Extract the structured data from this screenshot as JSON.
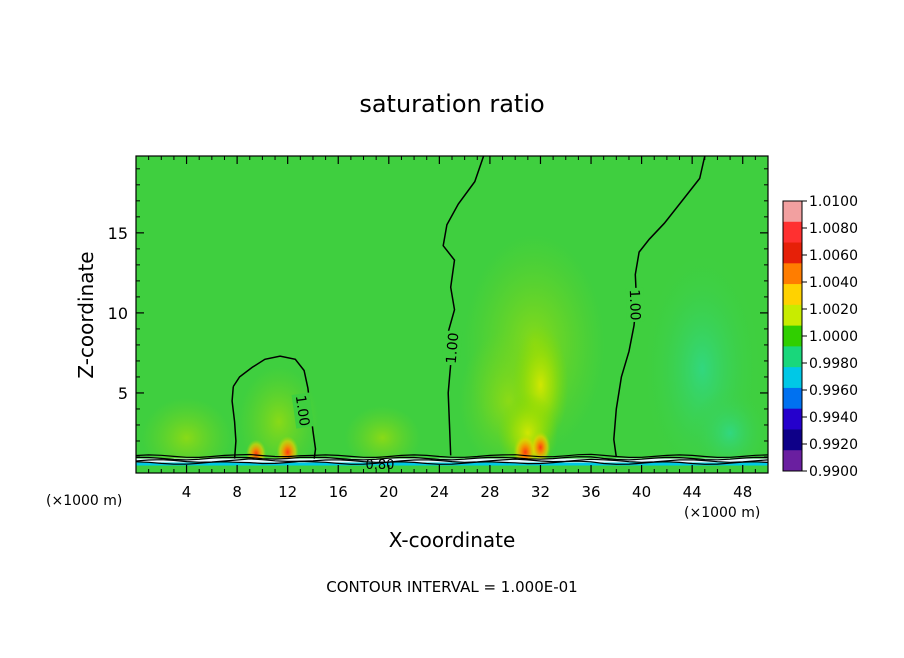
{
  "chart_data": {
    "type": "heatmap",
    "title": "saturation ratio",
    "xlabel": "X-coordinate",
    "ylabel": "Z-coordinate",
    "x_unit_left": "(×1000 m)",
    "x_unit_right": "(×1000 m)",
    "xlim": [
      0,
      50
    ],
    "ylim": [
      0,
      19.8
    ],
    "x_ticks": [
      4,
      8,
      12,
      16,
      20,
      24,
      28,
      32,
      36,
      40,
      44,
      48
    ],
    "y_ticks": [
      5,
      10,
      15
    ],
    "footer": "CONTOUR INTERVAL = 1.000E-01",
    "colorbar": {
      "levels": [
        "1.0100",
        "1.0080",
        "1.0060",
        "1.0040",
        "1.0020",
        "1.0000",
        "0.9980",
        "0.9960",
        "0.9940",
        "0.9920",
        "0.9900"
      ],
      "colors": [
        "#f2a0a0",
        "#ff3030",
        "#e62008",
        "#ff7d00",
        "#ffd200",
        "#c8ec00",
        "#30cf00",
        "#19d77b",
        "#00c8e6",
        "#0071f0",
        "#2500cc",
        "#0e0088",
        "#6a1fa0"
      ]
    },
    "background_value_color": "#3fcf3f",
    "contours": [
      {
        "label": "1.00",
        "points": [
          [
            7.7,
            5.4
          ],
          [
            8.2,
            6.0
          ],
          [
            9.2,
            6.6
          ],
          [
            10.2,
            7.1
          ],
          [
            11.4,
            7.3
          ],
          [
            12.6,
            7.1
          ],
          [
            13.3,
            6.4
          ],
          [
            13.6,
            5.3
          ],
          [
            13.8,
            4.0
          ],
          [
            14.0,
            2.6
          ],
          [
            14.2,
            1.5
          ],
          [
            14.1,
            0.9
          ]
        ]
      },
      {
        "label": "1.00",
        "points": [
          [
            7.8,
            0.9
          ],
          [
            7.9,
            2.0
          ],
          [
            7.8,
            3.2
          ],
          [
            7.6,
            4.5
          ],
          [
            7.7,
            5.4
          ]
        ]
      },
      {
        "label": "1.00",
        "points": [
          [
            27.5,
            19.8
          ],
          [
            26.8,
            18.2
          ],
          [
            25.5,
            16.8
          ],
          [
            24.6,
            15.5
          ],
          [
            24.3,
            14.2
          ],
          [
            25.2,
            13.3
          ],
          [
            24.9,
            11.6
          ],
          [
            25.2,
            10.2
          ],
          [
            24.7,
            8.8
          ],
          [
            24.9,
            6.8
          ],
          [
            24.7,
            5.0
          ],
          [
            24.8,
            3.0
          ],
          [
            24.9,
            1.1
          ]
        ]
      },
      {
        "label": "1.00",
        "points": [
          [
            45.0,
            19.8
          ],
          [
            44.6,
            18.4
          ],
          [
            43.4,
            17.2
          ],
          [
            41.8,
            15.6
          ],
          [
            40.6,
            14.6
          ],
          [
            39.8,
            13.8
          ],
          [
            39.5,
            12.4
          ],
          [
            39.6,
            10.8
          ],
          [
            39.4,
            9.2
          ],
          [
            39.0,
            7.6
          ],
          [
            38.4,
            6.0
          ],
          [
            38.0,
            4.0
          ],
          [
            37.8,
            2.1
          ],
          [
            38.0,
            1.0
          ]
        ]
      }
    ],
    "surface_label": "0.80"
  }
}
